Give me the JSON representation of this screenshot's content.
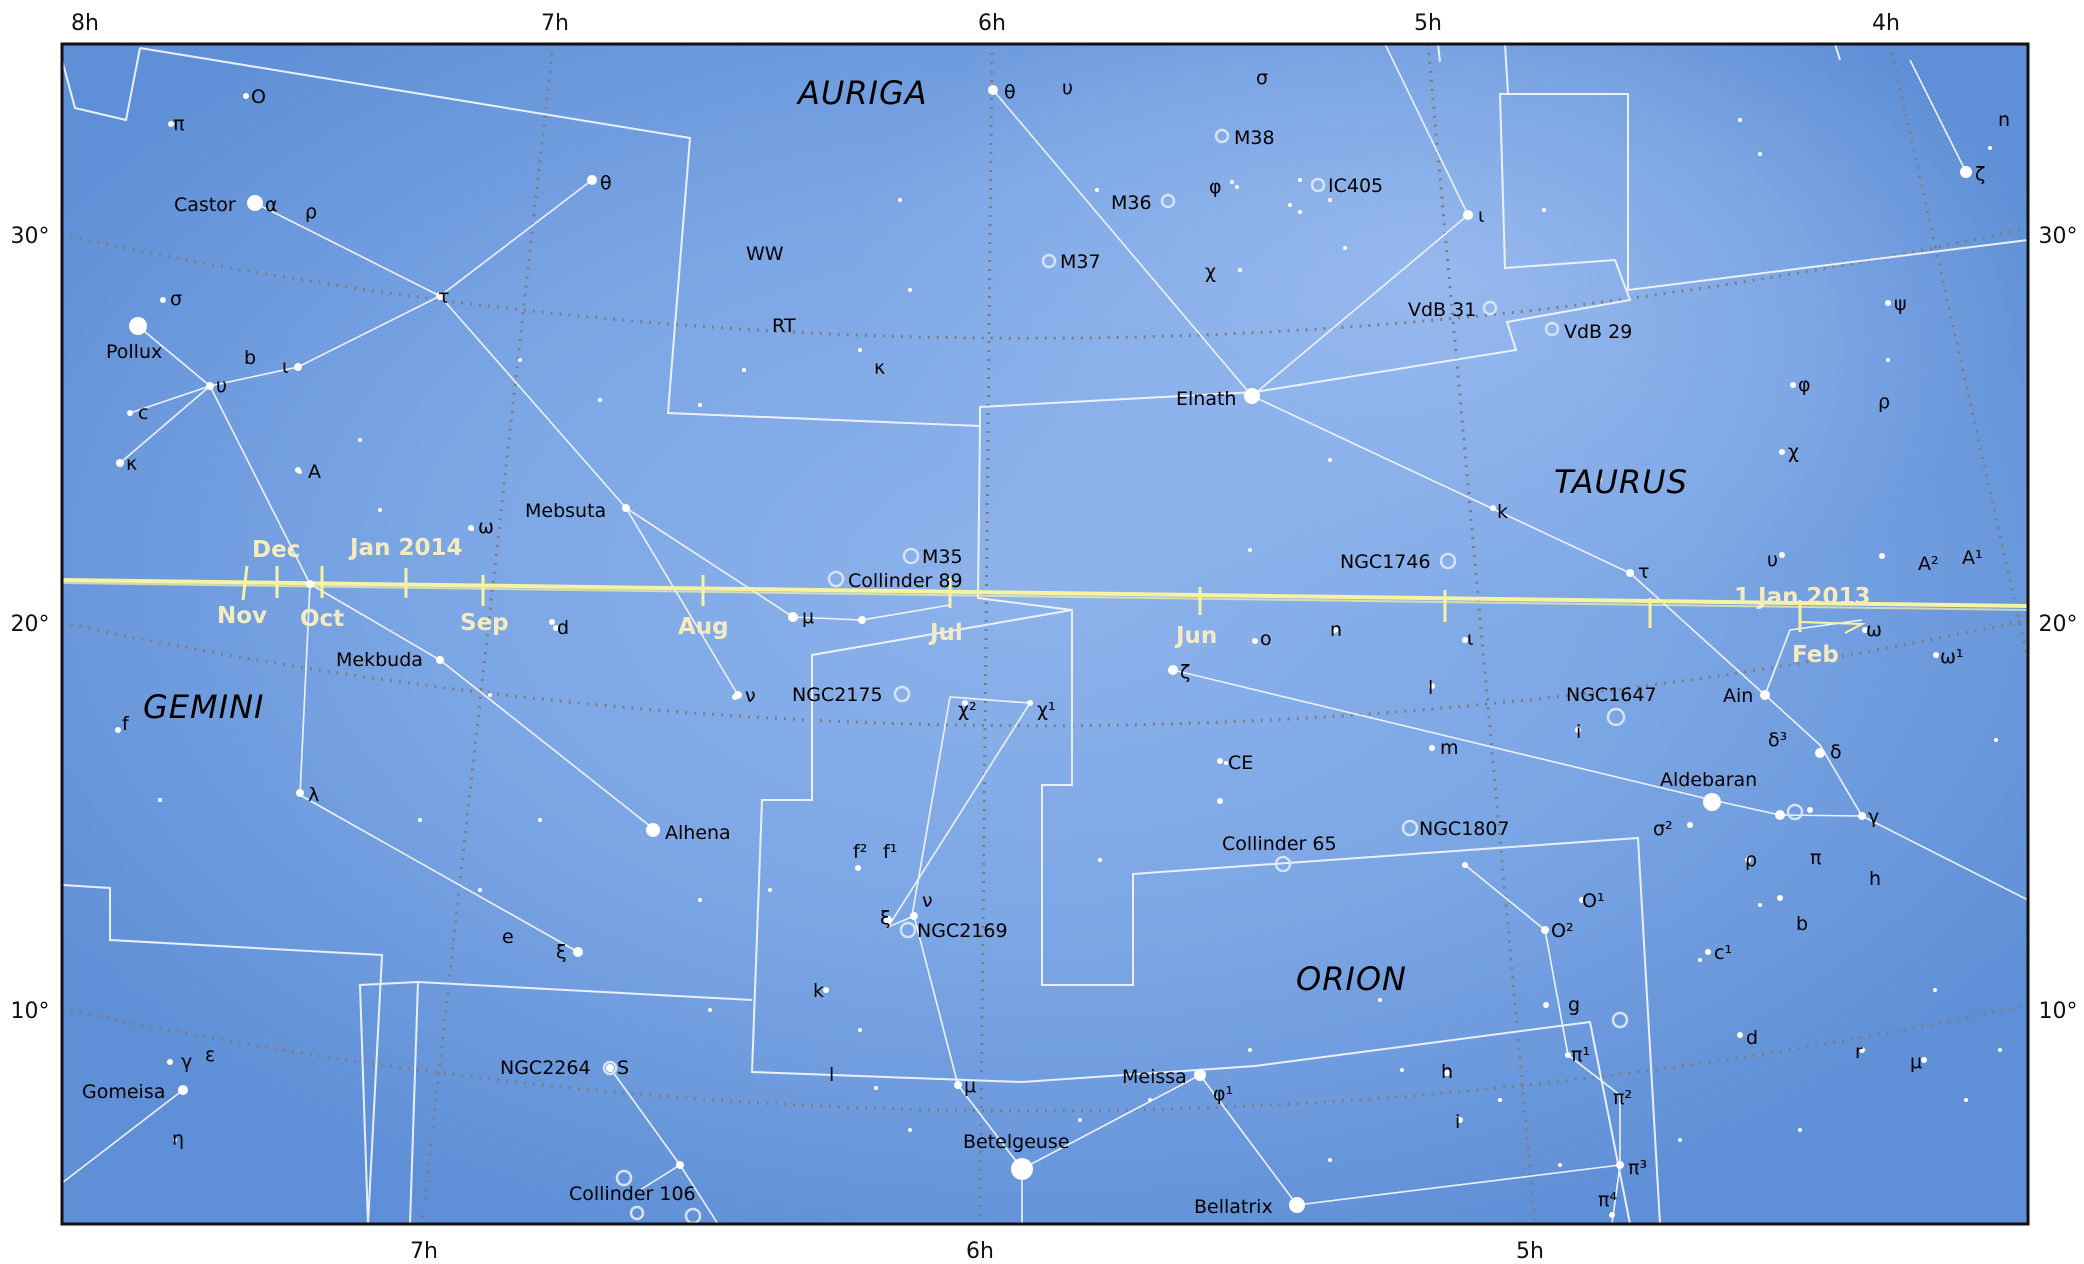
{
  "ra_labels_top": [
    "8h",
    "7h",
    "6h",
    "5h",
    "4h"
  ],
  "ra_labels_bottom": [
    "7h",
    "6h",
    "5h"
  ],
  "dec_labels": [
    "30°",
    "20°",
    "10°"
  ],
  "constellations": [
    "AURIGA",
    "TAURUS",
    "GEMINI",
    "ORION"
  ],
  "star_labels": [
    "O",
    "π",
    "Castor",
    "α",
    "ρ",
    "θ",
    "σ",
    "Pollux",
    "b",
    "ι",
    "υ",
    "c",
    "κ",
    "A",
    "τ",
    "WW",
    "RT",
    "κ",
    "θ",
    "υ",
    "σ",
    "M38",
    "M36",
    "φ",
    "IC405",
    "M37",
    "χ",
    "ι",
    "VdB 31",
    "VdB 29",
    "Elnath",
    "ψ",
    "φ",
    "ρ",
    "χ",
    "n",
    "ζ",
    "Mebsuta",
    "ω",
    "M35",
    "Collinder 89",
    "μ",
    "NGC1746",
    "k",
    "τ",
    "υ",
    "A²",
    "A¹",
    "1 Jan 2013",
    "ω",
    "ω¹",
    "d",
    "o",
    "n",
    "ι",
    "Mekbuda",
    "ν",
    "NGC2175",
    "χ²",
    "χ¹",
    "ζ",
    "l",
    "NGC1647",
    "Ain",
    "i",
    "δ³",
    "δ",
    "f",
    "λ",
    "CE",
    "m",
    "Aldebaran",
    "σ²",
    "γ",
    "Alhena",
    "Collinder 65",
    "NGC1807",
    "ρ",
    "π",
    "h",
    "f²",
    "f¹",
    "ν",
    "ξ",
    "NGC2169",
    "O¹",
    "O²",
    "b",
    "e",
    "ξ",
    "c¹",
    "k",
    "g",
    "γ",
    "ε",
    "NGC2264",
    "S",
    "l",
    "Meissa",
    "φ¹",
    "h",
    "π¹",
    "d",
    "r",
    "μ",
    "Gomeisa",
    "μ",
    "π²",
    "η",
    "Betelgeuse",
    "i",
    "π³",
    "Collinder 106",
    "Bellatrix",
    "π⁴"
  ],
  "ecliptic_months": [
    "Dec",
    "Jan 2014",
    "Nov",
    "Oct",
    "Sep",
    "Aug",
    "Jul",
    "Jun",
    "Feb"
  ],
  "colors": {
    "sky": "#6d9ce0",
    "sky_light": "#8fb5ec",
    "ecliptic": "#f7f3a0",
    "boundary": "#f0f4ff",
    "grid": "#7a7a7a",
    "month_label": "#f4ecc0"
  }
}
